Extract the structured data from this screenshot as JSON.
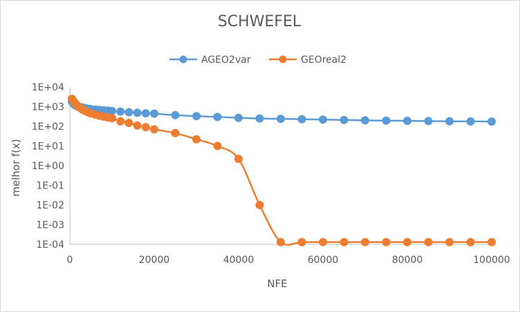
{
  "chart_data": {
    "type": "line",
    "title": "SCHWEFEL",
    "xlabel": "NFE",
    "ylabel": "melhor f(x)",
    "xlim": [
      0,
      100000
    ],
    "ylim": [
      0.0001,
      10000
    ],
    "yscale": "log",
    "grid": false,
    "legend_position": "top",
    "x_ticks": [
      "0",
      "20000",
      "40000",
      "60000",
      "80000",
      "100000"
    ],
    "y_ticks": [
      "1E+04",
      "1E+03",
      "1E+02",
      "1E+01",
      "1E+00",
      "1E-01",
      "1E-02",
      "1E-03",
      "1E-04"
    ],
    "series": [
      {
        "name": "AGEO2var",
        "color": "#5b9bd5",
        "x": [
          500,
          1000,
          1500,
          2000,
          2500,
          3000,
          3500,
          4000,
          4500,
          5000,
          6000,
          7000,
          8000,
          9000,
          10000,
          12000,
          14000,
          16000,
          18000,
          20000,
          25000,
          30000,
          35000,
          40000,
          45000,
          50000,
          55000,
          60000,
          65000,
          70000,
          75000,
          80000,
          85000,
          90000,
          95000,
          100000
        ],
        "y": [
          1800,
          1300,
          1100,
          1000,
          950,
          900,
          850,
          800,
          780,
          750,
          700,
          680,
          650,
          630,
          600,
          560,
          520,
          490,
          460,
          440,
          370,
          330,
          300,
          270,
          250,
          240,
          230,
          220,
          210,
          200,
          195,
          190,
          185,
          180,
          178,
          175
        ]
      },
      {
        "name": "GEOreal2",
        "color": "#ed7d31",
        "x": [
          500,
          1000,
          1500,
          2000,
          2500,
          3000,
          3500,
          4000,
          4500,
          5000,
          6000,
          7000,
          8000,
          9000,
          10000,
          12000,
          14000,
          16000,
          18000,
          20000,
          25000,
          30000,
          35000,
          40000,
          45000,
          50000,
          55000,
          60000,
          65000,
          70000,
          75000,
          80000,
          85000,
          90000,
          95000,
          100000
        ],
        "y": [
          2500,
          1800,
          1300,
          1000,
          850,
          700,
          620,
          550,
          500,
          450,
          400,
          350,
          310,
          280,
          260,
          180,
          150,
          110,
          90,
          70,
          45,
          22,
          10,
          2.2,
          0.01,
          0.00013,
          0.00013,
          0.00013,
          0.00013,
          0.00013,
          0.00013,
          0.00013,
          0.00013,
          0.00013,
          0.00013,
          0.00013
        ]
      }
    ]
  }
}
